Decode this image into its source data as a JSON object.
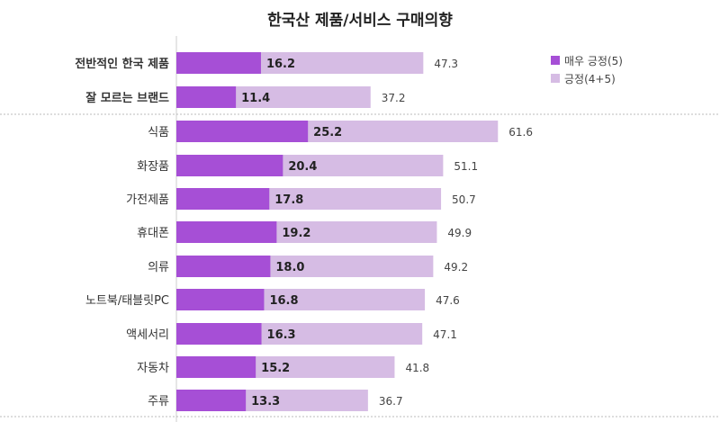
{
  "chart_data": {
    "type": "bar",
    "orientation": "horizontal",
    "title": "한국산 제품/서비스 구매의향",
    "categories": [
      "전반적인 한국 제품",
      "잘 모르는 브랜드",
      "식품",
      "화장품",
      "가전제품",
      "휴대폰",
      "의류",
      "노트북/태블릿PC",
      "액세서리",
      "자동차",
      "주류"
    ],
    "bold_categories": [
      "전반적인 한국 제품",
      "잘 모르는 브랜드"
    ],
    "series": [
      {
        "name": "매우 긍정(5)",
        "color": "#a64fd6",
        "values": [
          16.2,
          11.4,
          25.2,
          20.4,
          17.8,
          19.2,
          18.0,
          16.8,
          16.3,
          15.2,
          13.3
        ],
        "labels": [
          "16.2",
          "11.4",
          "25.2",
          "20.4",
          "17.8",
          "19.2",
          "18.0",
          "16.8",
          "16.3",
          "15.2",
          "13.3"
        ]
      },
      {
        "name": "긍정(4+5)",
        "color": "#d6bce4",
        "values": [
          47.3,
          37.2,
          61.6,
          51.1,
          50.7,
          49.9,
          49.2,
          47.6,
          47.1,
          41.8,
          36.7
        ],
        "labels": [
          "47.3",
          "37.2",
          "61.6",
          "51.1",
          "50.7",
          "49.9",
          "49.2",
          "47.6",
          "47.1",
          "41.8",
          "36.7"
        ]
      }
    ],
    "legend_position": "top-right",
    "grid": false,
    "xlim": [
      0,
      65
    ]
  }
}
